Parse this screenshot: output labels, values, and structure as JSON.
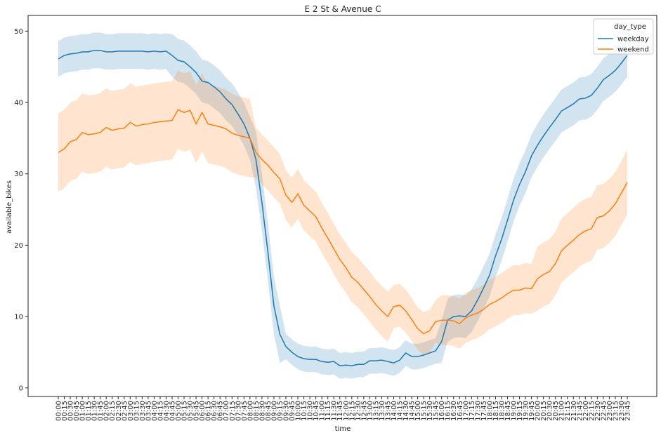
{
  "chart_data": {
    "type": "line",
    "title": "E 2 St & Avenue C",
    "x_label": "time",
    "y_label": "available_bikes",
    "legend_title": "day_type",
    "legend": "upper right",
    "categories": [
      "00:00",
      "00:15",
      "00:30",
      "00:45",
      "01:00",
      "01:15",
      "01:30",
      "01:45",
      "02:00",
      "02:15",
      "02:30",
      "02:45",
      "03:00",
      "03:15",
      "03:30",
      "03:45",
      "04:00",
      "04:15",
      "04:30",
      "04:45",
      "05:00",
      "05:15",
      "05:30",
      "05:45",
      "06:00",
      "06:15",
      "06:30",
      "06:45",
      "07:00",
      "07:15",
      "07:30",
      "07:45",
      "08:00",
      "08:15",
      "08:30",
      "08:45",
      "09:00",
      "09:15",
      "09:30",
      "09:45",
      "10:00",
      "10:15",
      "10:30",
      "10:45",
      "11:00",
      "11:15",
      "11:30",
      "11:45",
      "12:00",
      "12:15",
      "12:30",
      "12:45",
      "13:00",
      "13:15",
      "13:30",
      "13:45",
      "14:00",
      "14:15",
      "14:30",
      "14:45",
      "15:00",
      "15:15",
      "15:30",
      "15:45",
      "16:00",
      "16:15",
      "16:30",
      "16:45",
      "17:00",
      "17:15",
      "17:30",
      "17:45",
      "18:00",
      "18:15",
      "18:30",
      "18:45",
      "19:00",
      "19:15",
      "19:30",
      "19:45",
      "20:00",
      "20:15",
      "20:30",
      "20:45",
      "21:00",
      "21:15",
      "21:30",
      "21:45",
      "22:00",
      "22:15",
      "22:30",
      "22:45",
      "23:00",
      "23:15",
      "23:30",
      "23:45"
    ],
    "ylim": [
      -1.2,
      52.2
    ],
    "yticks": [
      0,
      10,
      20,
      30,
      40,
      50
    ],
    "series": [
      {
        "name": "weekday",
        "color": "#1f77b4",
        "values": [
          46.1,
          46.6,
          46.8,
          46.9,
          47.1,
          47.1,
          47.3,
          47.3,
          47.1,
          47.1,
          47.2,
          47.2,
          47.2,
          47.2,
          47.2,
          47.1,
          47.2,
          47.1,
          47.2,
          46.6,
          45.9,
          45.7,
          45.0,
          44.2,
          43.0,
          42.8,
          42.2,
          41.5,
          40.5,
          39.7,
          38.4,
          37.0,
          35.0,
          32.0,
          26.0,
          19.0,
          11.5,
          7.5,
          5.8,
          5.0,
          4.4,
          4.1,
          4.0,
          4.0,
          3.7,
          3.6,
          3.7,
          3.1,
          3.2,
          3.1,
          3.3,
          3.3,
          3.8,
          3.8,
          3.9,
          3.7,
          3.5,
          3.9,
          4.9,
          4.4,
          4.4,
          4.6,
          4.9,
          5.2,
          6.5,
          9.5,
          10.0,
          10.1,
          10.0,
          10.8,
          12.3,
          14.0,
          15.8,
          18.5,
          20.8,
          23.5,
          26.3,
          28.5,
          30.3,
          32.5,
          34.0,
          35.3,
          36.5,
          37.6,
          38.8,
          39.3,
          39.8,
          40.5,
          40.6,
          41.0,
          42.0,
          43.2,
          43.8,
          44.5,
          45.5,
          46.6
        ],
        "ci_upper": [
          48.6,
          49.1,
          49.3,
          49.4,
          49.6,
          49.6,
          49.8,
          49.8,
          49.6,
          49.6,
          49.7,
          49.7,
          49.7,
          49.7,
          49.7,
          49.6,
          49.7,
          49.6,
          49.7,
          49.6,
          48.9,
          48.7,
          48.0,
          47.2,
          46.0,
          45.8,
          45.2,
          44.5,
          43.5,
          42.7,
          41.4,
          40.0,
          38.0,
          36.0,
          30.0,
          23.0,
          15.5,
          11.5,
          7.6,
          6.8,
          6.2,
          5.9,
          5.8,
          5.8,
          5.5,
          5.4,
          5.5,
          4.9,
          5.0,
          4.9,
          5.1,
          5.1,
          5.6,
          5.6,
          5.7,
          5.5,
          5.3,
          5.7,
          6.7,
          6.2,
          6.2,
          6.4,
          6.7,
          7.0,
          9.5,
          12.5,
          13.0,
          13.1,
          13.0,
          13.8,
          15.3,
          17.0,
          18.8,
          21.5,
          23.8,
          26.5,
          29.3,
          31.5,
          33.3,
          35.5,
          37.0,
          38.3,
          39.5,
          40.6,
          41.8,
          42.3,
          42.8,
          43.5,
          43.6,
          44.0,
          45.0,
          46.2,
          46.8,
          47.5,
          48.5,
          49.6
        ],
        "ci_lower": [
          43.6,
          44.1,
          44.3,
          44.4,
          44.6,
          44.6,
          44.8,
          44.8,
          44.6,
          44.6,
          44.7,
          44.7,
          44.7,
          44.7,
          44.7,
          44.6,
          44.7,
          44.6,
          44.7,
          43.6,
          42.9,
          42.7,
          42.0,
          41.2,
          40.0,
          39.8,
          39.2,
          38.5,
          37.5,
          36.7,
          35.4,
          34.0,
          32.0,
          28.0,
          22.0,
          15.0,
          7.5,
          3.5,
          4.0,
          3.2,
          2.6,
          2.3,
          2.2,
          2.2,
          1.9,
          1.8,
          1.9,
          1.3,
          1.4,
          1.3,
          1.5,
          1.5,
          2.0,
          2.0,
          2.1,
          1.9,
          1.7,
          2.1,
          3.1,
          2.6,
          2.6,
          2.8,
          3.1,
          3.4,
          3.5,
          6.5,
          7.0,
          7.1,
          7.0,
          7.8,
          9.3,
          11.0,
          12.8,
          15.5,
          17.8,
          20.5,
          23.3,
          25.5,
          27.3,
          29.5,
          31.0,
          32.3,
          33.5,
          34.6,
          35.8,
          36.3,
          36.8,
          37.5,
          37.6,
          38.0,
          39.0,
          40.2,
          40.8,
          41.5,
          42.5,
          43.6
        ]
      },
      {
        "name": "weekend",
        "color": "#ff7f0e",
        "values": [
          33.0,
          33.5,
          34.5,
          34.8,
          35.8,
          35.5,
          35.6,
          35.8,
          36.5,
          36.1,
          36.3,
          36.4,
          37.2,
          36.7,
          36.9,
          37.0,
          37.2,
          37.3,
          37.4,
          37.5,
          39.0,
          38.6,
          38.9,
          37.0,
          38.6,
          37.0,
          36.8,
          36.6,
          36.3,
          35.7,
          35.4,
          35.2,
          35.0,
          33.0,
          32.0,
          31.2,
          30.2,
          29.3,
          27.0,
          26.0,
          27.2,
          25.6,
          24.8,
          24.0,
          22.4,
          21.0,
          19.5,
          18.0,
          16.9,
          15.5,
          14.8,
          13.8,
          12.8,
          11.7,
          10.8,
          10.0,
          11.4,
          11.6,
          10.8,
          9.6,
          8.3,
          7.6,
          8.0,
          9.3,
          9.5,
          9.5,
          9.4,
          9.0,
          9.8,
          10.2,
          10.5,
          11.0,
          11.7,
          12.1,
          12.6,
          13.2,
          13.7,
          13.7,
          14.0,
          13.9,
          15.3,
          15.9,
          16.3,
          17.4,
          19.2,
          20.0,
          20.7,
          21.5,
          22.0,
          22.3,
          23.9,
          24.1,
          24.8,
          25.8,
          27.3,
          28.8
        ],
        "ci_upper": [
          38.5,
          39.0,
          40.0,
          40.3,
          41.3,
          41.0,
          41.1,
          41.3,
          42.0,
          41.6,
          41.8,
          41.9,
          42.7,
          42.2,
          42.4,
          42.5,
          42.7,
          42.8,
          42.9,
          43.0,
          44.5,
          44.1,
          44.4,
          42.5,
          44.1,
          42.5,
          42.3,
          42.1,
          41.8,
          41.2,
          40.9,
          40.7,
          40.5,
          36.5,
          35.5,
          34.7,
          33.7,
          32.8,
          30.5,
          29.5,
          30.7,
          29.1,
          28.3,
          27.5,
          25.9,
          24.5,
          23.0,
          21.5,
          20.4,
          19.0,
          18.3,
          17.3,
          16.3,
          15.2,
          14.3,
          13.5,
          14.4,
          14.6,
          13.8,
          12.6,
          11.3,
          10.6,
          11.0,
          12.3,
          13.0,
          13.0,
          12.9,
          12.5,
          13.3,
          13.7,
          14.0,
          14.5,
          15.2,
          15.6,
          16.1,
          16.7,
          17.2,
          17.2,
          17.5,
          17.4,
          19.8,
          20.4,
          20.8,
          21.9,
          23.7,
          24.5,
          25.2,
          26.0,
          26.5,
          26.8,
          28.4,
          28.6,
          29.3,
          30.3,
          31.8,
          33.3
        ],
        "ci_lower": [
          27.5,
          28.0,
          29.0,
          29.3,
          30.3,
          30.0,
          30.1,
          30.3,
          31.0,
          30.6,
          30.8,
          30.9,
          31.7,
          31.2,
          31.4,
          31.5,
          31.7,
          31.8,
          31.9,
          32.0,
          33.5,
          33.1,
          33.4,
          31.5,
          33.1,
          31.5,
          31.3,
          31.1,
          30.8,
          30.2,
          29.9,
          29.7,
          29.5,
          29.5,
          28.5,
          27.7,
          26.7,
          25.8,
          23.5,
          22.5,
          23.7,
          22.1,
          21.3,
          20.5,
          18.9,
          17.5,
          16.0,
          14.5,
          13.4,
          12.0,
          11.3,
          10.3,
          9.3,
          8.2,
          7.3,
          6.5,
          8.4,
          8.6,
          7.8,
          6.6,
          5.3,
          4.6,
          5.0,
          6.3,
          6.0,
          6.0,
          5.9,
          5.5,
          6.3,
          6.7,
          7.0,
          7.5,
          8.2,
          8.6,
          9.1,
          9.7,
          10.2,
          10.2,
          10.5,
          10.4,
          10.8,
          11.4,
          11.8,
          12.9,
          14.7,
          15.5,
          16.2,
          17.0,
          17.5,
          17.8,
          19.4,
          19.6,
          20.3,
          21.3,
          22.8,
          24.3
        ]
      }
    ]
  }
}
